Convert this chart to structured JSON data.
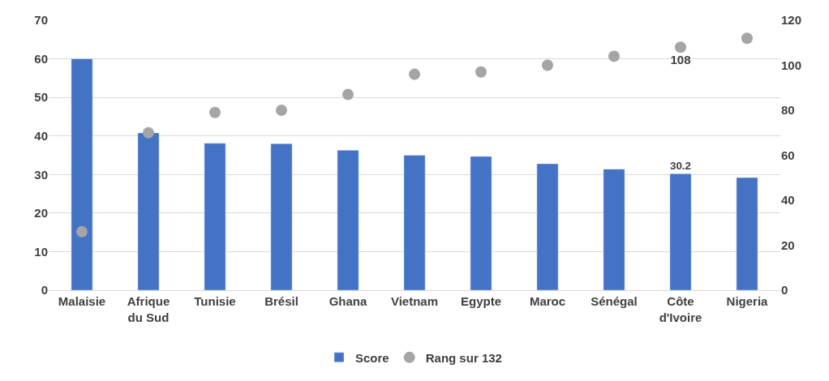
{
  "chart_data": {
    "type": "bar",
    "categories": [
      "Malaisie",
      "Afrique du Sud",
      "Tunisie",
      "Brésil",
      "Ghana",
      "Vietnam",
      "Egypte",
      "Maroc",
      "Sénégal",
      "Côte d'Ivoire",
      "Nigeria"
    ],
    "series": [
      {
        "name": "Score",
        "color": "#4472c4",
        "values": [
          60,
          40.8,
          38.1,
          38.0,
          36.3,
          35.0,
          34.7,
          32.8,
          31.4,
          30.2,
          29.2
        ],
        "value_labels": [
          null,
          null,
          null,
          null,
          null,
          null,
          null,
          null,
          null,
          "30.2",
          null
        ]
      },
      {
        "name": "Rang sur 132",
        "type": "scatter",
        "axis": "y2",
        "color": "#a5a5a5",
        "marker": "circle",
        "values": [
          26,
          70,
          79,
          80,
          87,
          96,
          97,
          100,
          104,
          108,
          112
        ],
        "value_labels": [
          null,
          null,
          null,
          null,
          null,
          null,
          null,
          null,
          null,
          "108",
          null
        ]
      }
    ],
    "ylim": [
      0,
      70
    ],
    "yticks": [
      0,
      10,
      20,
      30,
      40,
      50,
      60,
      70
    ],
    "y2lim": [
      0,
      120
    ],
    "y2ticks": [
      0,
      20,
      40,
      60,
      80,
      100,
      120
    ],
    "grid": "y",
    "legend": "bottom"
  }
}
